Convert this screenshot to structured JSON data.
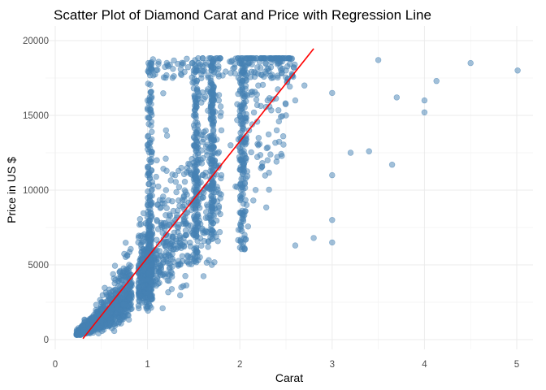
{
  "chart_data": {
    "type": "scatter",
    "title": "Scatter Plot of Diamond Carat and Price with Regression Line",
    "xlabel": "Carat",
    "ylabel": "Price in US $",
    "xlim": [
      0,
      5.2
    ],
    "ylim": [
      -600,
      20500
    ],
    "x_ticks": [
      0,
      1,
      2,
      3,
      4,
      5
    ],
    "x_tick_labels": [
      "0",
      "1",
      "2",
      "3",
      "4",
      "5"
    ],
    "y_ticks": [
      0,
      5000,
      10000,
      15000,
      20000
    ],
    "y_tick_labels": [
      "0",
      "5000",
      "10000",
      "15000",
      "20000"
    ],
    "grid": true,
    "series": [
      {
        "kind": "points",
        "color": "#4682b4",
        "sample": [
          [
            0.23,
            326
          ],
          [
            0.25,
            400
          ],
          [
            0.3,
            500
          ],
          [
            0.3,
            900
          ],
          [
            0.31,
            600
          ],
          [
            0.32,
            1300
          ],
          [
            0.35,
            700
          ],
          [
            0.4,
            1000
          ],
          [
            0.4,
            1500
          ],
          [
            0.45,
            1100
          ],
          [
            0.5,
            1300
          ],
          [
            0.5,
            2000
          ],
          [
            0.5,
            2500
          ],
          [
            0.55,
            1600
          ],
          [
            0.6,
            1800
          ],
          [
            0.6,
            3000
          ],
          [
            0.7,
            2000
          ],
          [
            0.7,
            2800
          ],
          [
            0.7,
            3500
          ],
          [
            0.7,
            4500
          ],
          [
            0.75,
            3000
          ],
          [
            0.8,
            2800
          ],
          [
            0.8,
            3600
          ],
          [
            0.8,
            5000
          ],
          [
            0.9,
            3500
          ],
          [
            0.9,
            4500
          ],
          [
            0.9,
            6500
          ],
          [
            0.95,
            4000
          ],
          [
            1.0,
            4000
          ],
          [
            1.0,
            5500
          ],
          [
            1.0,
            7000
          ],
          [
            1.0,
            9000
          ],
          [
            1.0,
            11000
          ],
          [
            1.0,
            13000
          ],
          [
            1.0,
            16000
          ],
          [
            1.01,
            18500
          ],
          [
            1.05,
            5000
          ],
          [
            1.1,
            6000
          ],
          [
            1.1,
            8000
          ],
          [
            1.1,
            12000
          ],
          [
            1.2,
            7000
          ],
          [
            1.2,
            10000
          ],
          [
            1.2,
            14000
          ],
          [
            1.3,
            8000
          ],
          [
            1.3,
            11000
          ],
          [
            1.4,
            9000
          ],
          [
            1.5,
            7000
          ],
          [
            1.5,
            10000
          ],
          [
            1.5,
            13000
          ],
          [
            1.5,
            15000
          ],
          [
            1.5,
            18000
          ],
          [
            1.6,
            9500
          ],
          [
            1.7,
            12000
          ],
          [
            1.7,
            16000
          ],
          [
            1.7,
            18600
          ],
          [
            1.8,
            11000
          ],
          [
            1.8,
            14000
          ],
          [
            1.9,
            13000
          ],
          [
            2.0,
            8500
          ],
          [
            2.0,
            12000
          ],
          [
            2.0,
            15000
          ],
          [
            2.0,
            18500
          ],
          [
            2.1,
            14000
          ],
          [
            2.2,
            13000
          ],
          [
            2.2,
            17000
          ],
          [
            2.3,
            12000
          ],
          [
            2.3,
            16000
          ],
          [
            2.4,
            14000
          ],
          [
            2.5,
            15000
          ],
          [
            2.5,
            18000
          ],
          [
            2.6,
            6300
          ],
          [
            2.6,
            16000
          ],
          [
            2.7,
            17000
          ],
          [
            2.8,
            6800
          ],
          [
            3.0,
            6500
          ],
          [
            3.0,
            8000
          ],
          [
            3.0,
            11000
          ],
          [
            3.0,
            16500
          ],
          [
            3.2,
            12500
          ],
          [
            3.4,
            12600
          ],
          [
            3.5,
            18700
          ],
          [
            3.65,
            11700
          ],
          [
            3.7,
            16200
          ],
          [
            4.0,
            15200
          ],
          [
            4.0,
            16000
          ],
          [
            4.13,
            17300
          ],
          [
            4.5,
            18500
          ],
          [
            5.01,
            18000
          ]
        ]
      },
      {
        "kind": "regression_line",
        "color": "#ff0000",
        "intercept": -2256.4,
        "slope": 7756.4,
        "x_range": [
          0.3,
          2.8
        ]
      }
    ]
  }
}
